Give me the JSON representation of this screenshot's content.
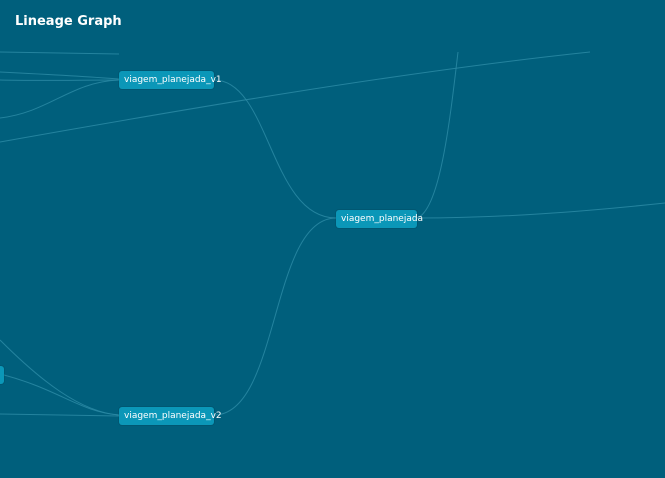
{
  "title": "Lineage Graph",
  "nodes": {
    "v1": {
      "label": "viagem_planejada_v1"
    },
    "main": {
      "label": "viagem_planejada"
    },
    "v2": {
      "label": "viagem_planejada_v2"
    },
    "partial": {
      "label": ""
    }
  },
  "colors": {
    "background": "#005f7c",
    "node": "#0b97b8",
    "edge": "#2a8aa4",
    "text": "#ffffff"
  }
}
